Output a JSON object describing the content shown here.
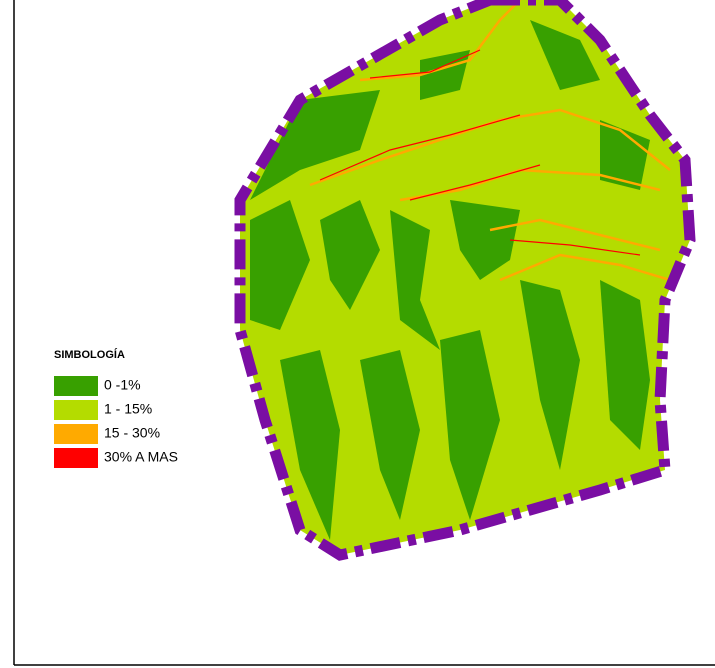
{
  "legend": {
    "title": "SIMBOLOGÍA",
    "items": [
      {
        "label": "0 -1%",
        "color": "#38a000"
      },
      {
        "label": "1 - 15%",
        "color": "#b4dc00"
      },
      {
        "label": "15 - 30%",
        "color": "#ffaa00"
      },
      {
        "label": "30% A MAS",
        "color": "#ff0000"
      }
    ]
  }
}
